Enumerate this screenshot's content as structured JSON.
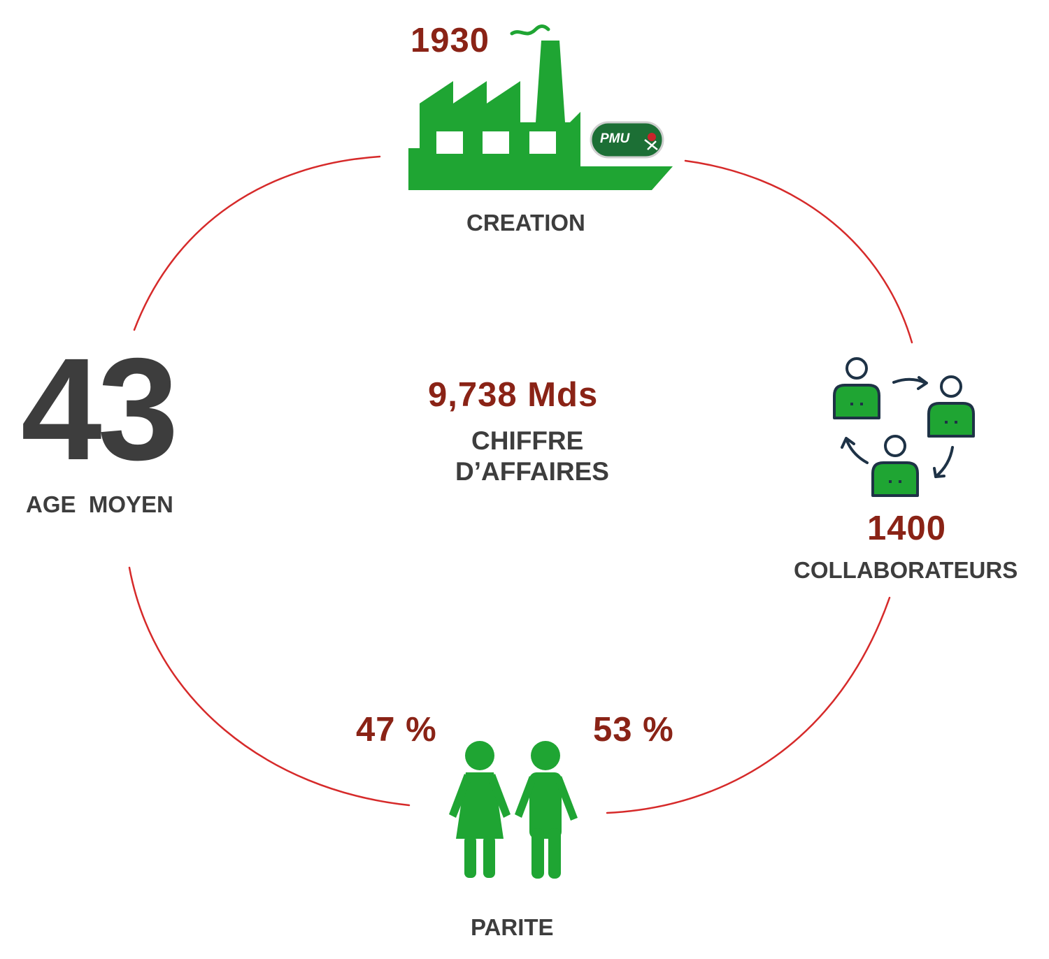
{
  "creation": {
    "year": "1930",
    "label": "CREATION",
    "logo_text": "PMU"
  },
  "revenue": {
    "value": "9,738 Mds",
    "label_line1": "CHIFFRE",
    "label_line2": "D’AFFAIRES"
  },
  "age": {
    "value": "43",
    "label": "AGE  MOYEN"
  },
  "staff": {
    "value": "1400",
    "label": "COLLABORATEURS"
  },
  "parity": {
    "women": "47 %",
    "men": "53 %",
    "label": "PARITE"
  },
  "colors": {
    "accent_green": "#1fa533",
    "number_red": "#8a2316",
    "label_grey": "#3d3d3d",
    "cycle_line": "#d62a2a",
    "icon_navy": "#1e3246"
  },
  "icons": {
    "creation": "factory-icon",
    "staff": "people-rotation-icon",
    "parity": "woman-man-icon"
  }
}
